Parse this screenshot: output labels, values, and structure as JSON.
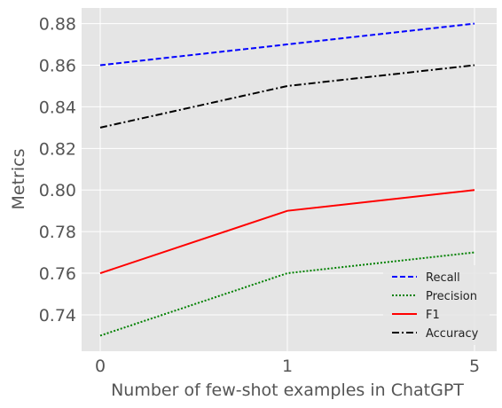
{
  "chart_data": {
    "type": "line",
    "xlabel": "Number of few-shot examples in ChatGPT",
    "ylabel": "Metrics",
    "categories": [
      "0",
      "1",
      "5"
    ],
    "ylim": [
      0.7225,
      0.8875
    ],
    "yticks": [
      "0.74",
      "0.76",
      "0.78",
      "0.80",
      "0.82",
      "0.84",
      "0.86",
      "0.88"
    ],
    "grid": true,
    "legend_position": "bottom-right",
    "series": [
      {
        "name": "Recall",
        "values": [
          0.86,
          0.87,
          0.88
        ],
        "color": "#0000ff",
        "style": "dashed"
      },
      {
        "name": "Precision",
        "values": [
          0.73,
          0.76,
          0.77
        ],
        "color": "#008000",
        "style": "dotted"
      },
      {
        "name": "F1",
        "values": [
          0.76,
          0.79,
          0.8
        ],
        "color": "#ff0000",
        "style": "solid"
      },
      {
        "name": "Accuracy",
        "values": [
          0.83,
          0.85,
          0.86
        ],
        "color": "#000000",
        "style": "dashdot"
      }
    ]
  }
}
